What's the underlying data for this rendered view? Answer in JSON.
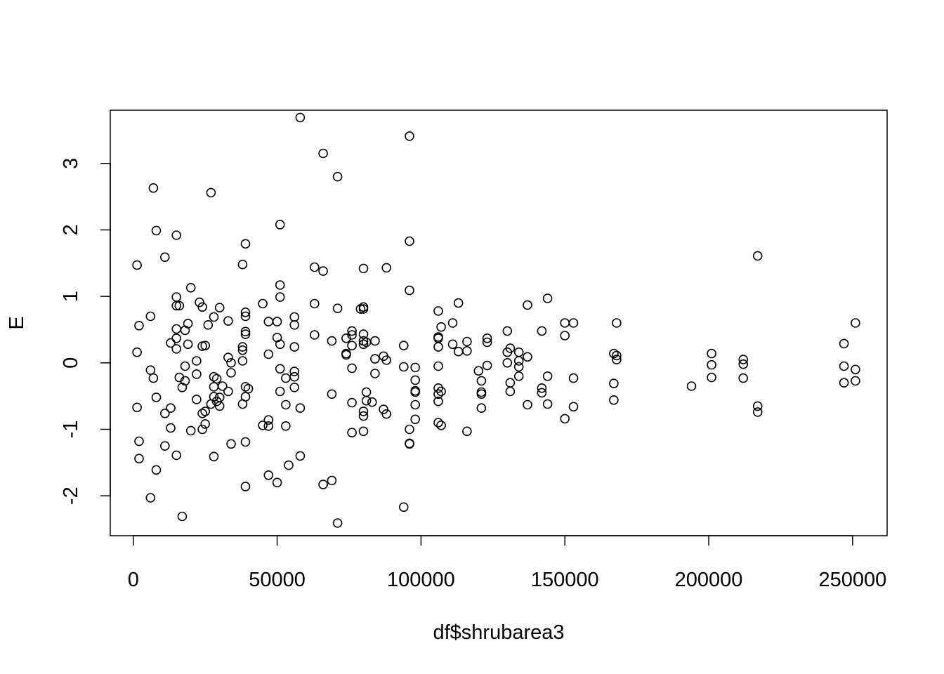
{
  "chart_data": {
    "type": "scatter",
    "title": "",
    "xlabel": "df$shrubarea3",
    "ylabel": "E",
    "xlim": [
      -8000,
      262000
    ],
    "ylim": [
      -2.6,
      3.8
    ],
    "xticks": [
      0,
      50000,
      100000,
      150000,
      200000,
      250000
    ],
    "xtick_labels": [
      "0",
      "50000",
      "100000",
      "150000",
      "200000",
      "250000"
    ],
    "yticks": [
      -2,
      -1,
      0,
      1,
      2,
      3
    ],
    "ytick_labels": [
      "-2",
      "-1",
      "0",
      "1",
      "2",
      "3"
    ],
    "grid": false,
    "legend": "none",
    "points": [
      [
        1300,
        1.47
      ],
      [
        1300,
        0.16
      ],
      [
        1300,
        -0.67
      ],
      [
        2000,
        0.56
      ],
      [
        2000,
        -1.18
      ],
      [
        2000,
        -1.44
      ],
      [
        6000,
        0.7
      ],
      [
        6000,
        -0.11
      ],
      [
        6000,
        -2.03
      ],
      [
        7000,
        2.63
      ],
      [
        7000,
        -0.23
      ],
      [
        8000,
        1.99
      ],
      [
        8000,
        -0.52
      ],
      [
        8000,
        -1.61
      ],
      [
        11000,
        1.59
      ],
      [
        11000,
        -0.76
      ],
      [
        11000,
        -1.25
      ],
      [
        13000,
        0.3
      ],
      [
        13000,
        -0.68
      ],
      [
        13000,
        -0.98
      ],
      [
        15000,
        1.92
      ],
      [
        15000,
        0.99
      ],
      [
        15000,
        0.86
      ],
      [
        15000,
        0.51
      ],
      [
        15000,
        0.37
      ],
      [
        15000,
        0.21
      ],
      [
        15000,
        -1.39
      ],
      [
        16000,
        0.86
      ],
      [
        16000,
        -0.22
      ],
      [
        17000,
        -0.37
      ],
      [
        17000,
        -2.31
      ],
      [
        18000,
        0.49
      ],
      [
        18000,
        -0.05
      ],
      [
        18000,
        -0.27
      ],
      [
        19000,
        0.59
      ],
      [
        19000,
        0.28
      ],
      [
        20000,
        1.13
      ],
      [
        20000,
        -1.02
      ],
      [
        22000,
        0.03
      ],
      [
        22000,
        -0.17
      ],
      [
        22000,
        -0.55
      ],
      [
        23000,
        0.91
      ],
      [
        24000,
        0.84
      ],
      [
        24000,
        0.25
      ],
      [
        24000,
        -0.76
      ],
      [
        24000,
        -1.0
      ],
      [
        25000,
        0.26
      ],
      [
        25000,
        -0.73
      ],
      [
        25000,
        -0.92
      ],
      [
        26000,
        0.57
      ],
      [
        27000,
        2.56
      ],
      [
        27000,
        -0.62
      ],
      [
        28000,
        0.69
      ],
      [
        28000,
        -0.21
      ],
      [
        28000,
        -0.36
      ],
      [
        28000,
        -0.51
      ],
      [
        28000,
        -1.41
      ],
      [
        29000,
        -0.24
      ],
      [
        29000,
        -0.58
      ],
      [
        30000,
        0.83
      ],
      [
        30000,
        -0.52
      ],
      [
        30000,
        -0.65
      ],
      [
        31000,
        -0.35
      ],
      [
        33000,
        0.63
      ],
      [
        33000,
        0.08
      ],
      [
        33000,
        -0.43
      ],
      [
        34000,
        0.0
      ],
      [
        34000,
        -0.15
      ],
      [
        34000,
        -1.22
      ],
      [
        38000,
        1.48
      ],
      [
        38000,
        0.24
      ],
      [
        38000,
        0.19
      ],
      [
        38000,
        0.03
      ],
      [
        38000,
        -0.62
      ],
      [
        39000,
        1.79
      ],
      [
        39000,
        0.76
      ],
      [
        39000,
        0.7
      ],
      [
        39000,
        0.47
      ],
      [
        39000,
        0.43
      ],
      [
        39000,
        -0.36
      ],
      [
        39000,
        -0.51
      ],
      [
        39000,
        -1.19
      ],
      [
        39000,
        -1.86
      ],
      [
        40000,
        -0.39
      ],
      [
        45000,
        0.89
      ],
      [
        45000,
        -0.94
      ],
      [
        47000,
        0.62
      ],
      [
        47000,
        0.13
      ],
      [
        47000,
        -0.86
      ],
      [
        47000,
        -0.95
      ],
      [
        47000,
        -1.69
      ],
      [
        50000,
        0.62
      ],
      [
        50000,
        0.38
      ],
      [
        50000,
        -1.8
      ],
      [
        51000,
        2.08
      ],
      [
        51000,
        1.17
      ],
      [
        51000,
        0.99
      ],
      [
        51000,
        0.28
      ],
      [
        51000,
        -0.09
      ],
      [
        51000,
        -0.43
      ],
      [
        53000,
        -0.23
      ],
      [
        53000,
        -0.63
      ],
      [
        53000,
        -0.95
      ],
      [
        54000,
        -1.54
      ],
      [
        56000,
        0.69
      ],
      [
        56000,
        0.57
      ],
      [
        56000,
        0.24
      ],
      [
        56000,
        -0.13
      ],
      [
        56000,
        -0.21
      ],
      [
        56000,
        -0.37
      ],
      [
        58000,
        3.69
      ],
      [
        58000,
        -0.68
      ],
      [
        58000,
        -1.4
      ],
      [
        63000,
        1.44
      ],
      [
        63000,
        0.89
      ],
      [
        63000,
        0.42
      ],
      [
        66000,
        3.15
      ],
      [
        66000,
        1.38
      ],
      [
        66000,
        -1.83
      ],
      [
        69000,
        0.33
      ],
      [
        69000,
        -0.47
      ],
      [
        69000,
        -1.77
      ],
      [
        71000,
        2.8
      ],
      [
        71000,
        0.82
      ],
      [
        71000,
        -2.41
      ],
      [
        74000,
        0.37
      ],
      [
        74000,
        0.14
      ],
      [
        74000,
        0.12
      ],
      [
        76000,
        0.48
      ],
      [
        76000,
        0.42
      ],
      [
        76000,
        0.26
      ],
      [
        76000,
        -0.08
      ],
      [
        76000,
        -0.6
      ],
      [
        76000,
        -1.05
      ],
      [
        79000,
        0.81
      ],
      [
        80000,
        1.42
      ],
      [
        80000,
        0.84
      ],
      [
        80000,
        0.81
      ],
      [
        80000,
        0.43
      ],
      [
        80000,
        0.33
      ],
      [
        80000,
        0.28
      ],
      [
        80000,
        -0.73
      ],
      [
        80000,
        -0.8
      ],
      [
        80000,
        -1.03
      ],
      [
        81000,
        0.31
      ],
      [
        81000,
        -0.44
      ],
      [
        81000,
        -0.57
      ],
      [
        83000,
        -0.59
      ],
      [
        84000,
        0.33
      ],
      [
        84000,
        0.06
      ],
      [
        84000,
        -0.16
      ],
      [
        87000,
        0.1
      ],
      [
        87000,
        -0.7
      ],
      [
        88000,
        1.43
      ],
      [
        88000,
        0.04
      ],
      [
        88000,
        -0.77
      ],
      [
        94000,
        0.26
      ],
      [
        94000,
        -0.06
      ],
      [
        94000,
        -2.17
      ],
      [
        96000,
        3.41
      ],
      [
        96000,
        1.83
      ],
      [
        96000,
        1.09
      ],
      [
        96000,
        -1.0
      ],
      [
        96000,
        -1.21
      ],
      [
        96000,
        -1.22
      ],
      [
        98000,
        -0.07
      ],
      [
        98000,
        -0.26
      ],
      [
        98000,
        -0.42
      ],
      [
        98000,
        -0.44
      ],
      [
        98000,
        -0.63
      ],
      [
        98000,
        -0.85
      ],
      [
        106000,
        0.78
      ],
      [
        106000,
        0.39
      ],
      [
        106000,
        0.37
      ],
      [
        106000,
        0.24
      ],
      [
        106000,
        -0.05
      ],
      [
        106000,
        -0.38
      ],
      [
        106000,
        -0.47
      ],
      [
        106000,
        -0.58
      ],
      [
        106000,
        -0.9
      ],
      [
        107000,
        0.54
      ],
      [
        107000,
        -0.43
      ],
      [
        107000,
        -0.94
      ],
      [
        111000,
        0.6
      ],
      [
        111000,
        0.28
      ],
      [
        113000,
        0.9
      ],
      [
        113000,
        0.17
      ],
      [
        116000,
        0.32
      ],
      [
        116000,
        0.18
      ],
      [
        116000,
        -1.03
      ],
      [
        120000,
        -0.12
      ],
      [
        121000,
        -0.27
      ],
      [
        121000,
        -0.44
      ],
      [
        121000,
        -0.68
      ],
      [
        121000,
        -0.47
      ],
      [
        123000,
        0.37
      ],
      [
        123000,
        0.31
      ],
      [
        123000,
        -0.04
      ],
      [
        130000,
        0.48
      ],
      [
        130000,
        0.16
      ],
      [
        130000,
        0.0
      ],
      [
        131000,
        0.22
      ],
      [
        131000,
        -0.3
      ],
      [
        131000,
        -0.43
      ],
      [
        134000,
        0.16
      ],
      [
        134000,
        0.03
      ],
      [
        134000,
        -0.06
      ],
      [
        134000,
        -0.2
      ],
      [
        137000,
        0.87
      ],
      [
        137000,
        0.09
      ],
      [
        137000,
        -0.63
      ],
      [
        142000,
        0.48
      ],
      [
        142000,
        -0.38
      ],
      [
        142000,
        -0.45
      ],
      [
        144000,
        0.97
      ],
      [
        144000,
        -0.2
      ],
      [
        144000,
        -0.62
      ],
      [
        150000,
        0.6
      ],
      [
        150000,
        0.41
      ],
      [
        150000,
        -0.84
      ],
      [
        153000,
        0.6
      ],
      [
        153000,
        -0.23
      ],
      [
        153000,
        -0.66
      ],
      [
        167000,
        0.14
      ],
      [
        167000,
        -0.31
      ],
      [
        167000,
        -0.56
      ],
      [
        168000,
        0.6
      ],
      [
        168000,
        0.11
      ],
      [
        168000,
        0.05
      ],
      [
        194000,
        -0.35
      ],
      [
        201000,
        0.14
      ],
      [
        201000,
        -0.03
      ],
      [
        201000,
        -0.22
      ],
      [
        212000,
        0.05
      ],
      [
        212000,
        -0.02
      ],
      [
        212000,
        -0.23
      ],
      [
        217000,
        1.61
      ],
      [
        217000,
        -0.65
      ],
      [
        217000,
        -0.74
      ],
      [
        247000,
        0.29
      ],
      [
        247000,
        -0.05
      ],
      [
        247000,
        -0.3
      ],
      [
        251000,
        0.6
      ],
      [
        251000,
        -0.1
      ],
      [
        251000,
        -0.27
      ]
    ]
  }
}
